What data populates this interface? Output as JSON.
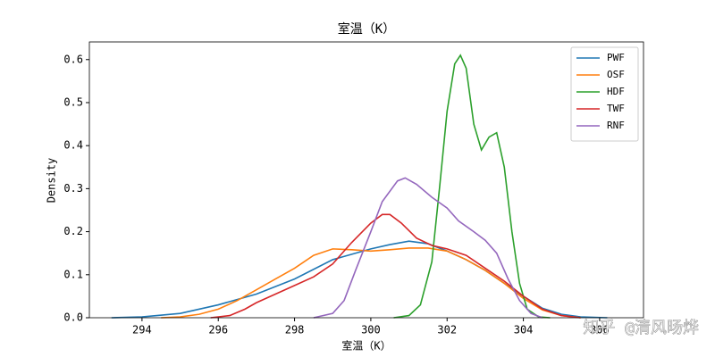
{
  "chart_data": {
    "type": "line",
    "title": "室温（K）",
    "xlabel": "室温（K）",
    "ylabel": "Density",
    "watermark": "知乎 @清风旸烨",
    "xlim": [
      292.62,
      307.15
    ],
    "ylim": [
      0,
      0.641
    ],
    "xticks": [
      294,
      296,
      298,
      300,
      302,
      304,
      306
    ],
    "yticks": [
      {
        "value": 0,
        "label": "0.0"
      },
      0.1,
      0.2,
      0.3,
      0.4,
      0.5,
      0.6
    ],
    "legend": "upper right",
    "series": [
      {
        "name": "PWF",
        "color": "#1f77b4",
        "x": [
          293.2,
          294,
          295,
          296,
          297,
          298,
          299,
          300,
          300.5,
          301,
          301.5,
          302,
          302.5,
          303,
          303.5,
          304,
          304.5,
          305,
          305.5,
          306.2
        ],
        "values": [
          0,
          0.002,
          0.01,
          0.03,
          0.055,
          0.09,
          0.135,
          0.16,
          0.17,
          0.178,
          0.172,
          0.155,
          0.135,
          0.11,
          0.08,
          0.05,
          0.022,
          0.008,
          0.002,
          0
        ]
      },
      {
        "name": "OSF",
        "color": "#ff7f0e",
        "x": [
          294.5,
          295,
          295.5,
          296,
          296.5,
          297,
          297.5,
          298,
          298.5,
          299,
          299.5,
          300,
          300.5,
          301,
          301.5,
          302,
          302.5,
          303,
          303.5,
          304,
          304.5,
          305,
          305.5
        ],
        "values": [
          0,
          0.002,
          0.008,
          0.02,
          0.04,
          0.065,
          0.09,
          0.115,
          0.145,
          0.16,
          0.158,
          0.155,
          0.158,
          0.162,
          0.162,
          0.155,
          0.135,
          0.11,
          0.08,
          0.045,
          0.018,
          0.005,
          0
        ]
      },
      {
        "name": "HDF",
        "color": "#2ca02c",
        "x": [
          300.6,
          301,
          301.3,
          301.6,
          301.8,
          302,
          302.2,
          302.35,
          302.5,
          302.7,
          302.9,
          303.1,
          303.3,
          303.5,
          303.7,
          303.9,
          304.1,
          304.4,
          304.7
        ],
        "values": [
          0,
          0.005,
          0.03,
          0.13,
          0.3,
          0.48,
          0.59,
          0.61,
          0.58,
          0.45,
          0.39,
          0.42,
          0.43,
          0.35,
          0.2,
          0.08,
          0.02,
          0.002,
          0
        ]
      },
      {
        "name": "TWF",
        "color": "#d62728",
        "x": [
          295.8,
          296.3,
          296.7,
          297,
          297.5,
          298,
          298.5,
          299,
          299.5,
          300,
          300.3,
          300.5,
          300.8,
          301.2,
          301.6,
          302,
          302.5,
          303,
          303.5,
          304,
          304.5,
          305,
          305.5
        ],
        "values": [
          0,
          0.005,
          0.02,
          0.035,
          0.055,
          0.075,
          0.095,
          0.125,
          0.175,
          0.22,
          0.24,
          0.24,
          0.22,
          0.185,
          0.168,
          0.16,
          0.145,
          0.115,
          0.085,
          0.05,
          0.02,
          0.005,
          0
        ]
      },
      {
        "name": "RNF",
        "color": "#9467bd",
        "x": [
          298.5,
          299,
          299.3,
          299.6,
          300,
          300.3,
          300.7,
          300.9,
          301.2,
          301.6,
          302,
          302.3,
          302.7,
          303,
          303.3,
          303.6,
          303.9,
          304.2,
          304.5
        ],
        "values": [
          0,
          0.01,
          0.04,
          0.11,
          0.2,
          0.27,
          0.318,
          0.325,
          0.31,
          0.28,
          0.255,
          0.225,
          0.2,
          0.18,
          0.15,
          0.09,
          0.04,
          0.01,
          0
        ]
      }
    ]
  }
}
